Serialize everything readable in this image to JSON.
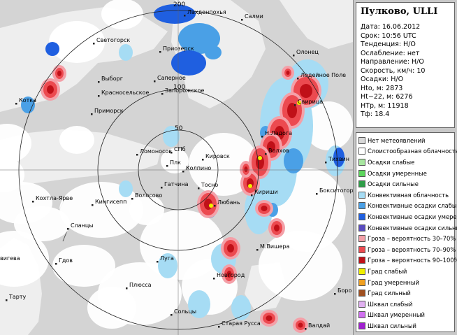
{
  "station": {
    "title": "Пулково, ULLI",
    "rows": [
      "Дата: 16.06.2012",
      "Срок: 10:56 UTC",
      "Тенденция: Н/О",
      "Ослабление: нет",
      "Направление: Н/О",
      "Скорость, км/ч: 10",
      "Осадки: Н/О",
      "Hto, м: 2873",
      "Ht−22, м: 6276",
      "HTp, м: 11918",
      "Тф: 18.4"
    ]
  },
  "legend": [
    {
      "label": "Нет метеоявлений",
      "color": "#d8d8d8"
    },
    {
      "label": "Слоистообразная облачность",
      "color": "#ffffff"
    },
    {
      "label": "Осадки слабые",
      "color": "#a8e6a0"
    },
    {
      "label": "Осадки умеренные",
      "color": "#5cd65c"
    },
    {
      "label": "Осадки сильные",
      "color": "#2e9e48"
    },
    {
      "label": "Конвективная облачность",
      "color": "#a6dcf4"
    },
    {
      "label": "Конвективные осадки слабые",
      "color": "#4aa0e6"
    },
    {
      "label": "Конвективные осадки умерен.",
      "color": "#1f5fe0"
    },
    {
      "label": "Конвективные осадки сильные",
      "color": "#5a4cc0"
    },
    {
      "label": "Гроза – вероятность 30–70%",
      "color": "#f4a0a8"
    },
    {
      "label": "Гроза – вероятность 70–90%",
      "color": "#ec4a50"
    },
    {
      "label": "Гроза – вероятность 90–100%",
      "color": "#c01018"
    },
    {
      "label": "Град слабый",
      "color": "#f0f000"
    },
    {
      "label": "Град умеренный",
      "color": "#f0a020"
    },
    {
      "label": "Град сильный",
      "color": "#a05020"
    },
    {
      "label": "Шквал слабый",
      "color": "#e0b0f0"
    },
    {
      "label": "Шквал умеренный",
      "color": "#d070f0"
    },
    {
      "label": "Шквал сильный",
      "color": "#a020d0"
    }
  ],
  "map": {
    "colors": {
      "land": "#d4d4d4",
      "water": "#eeeeee",
      "ring": "#222222",
      "stratus": "#ffffff",
      "conv_cloud": "#a6dcf4",
      "conv_light": "#4aa0e6",
      "conv_mod": "#1f5fe0",
      "storm_low": "#f4a0a8",
      "storm_mid": "#ec4a50",
      "storm_high": "#c01018",
      "hail": "#f0f000"
    },
    "ring_labels": [
      "200",
      "100",
      "50"
    ],
    "cities": [
      "Лахденпохья",
      "Салми",
      "Светогорск",
      "Приозерск",
      "Олонец",
      "Выборг",
      "Саперное",
      "Лодейное Поле",
      "Котка",
      "Красносельское",
      "Запорожское",
      "Приморск",
      "Свирица",
      "Н.Ладога",
      "Ломоносов",
      "СПб",
      "Волхов",
      "Плк",
      "Кировск",
      "Колпино",
      "Тихвин",
      "Гатчина",
      "Тосно",
      "Кириши",
      "Бокситогорск",
      "Кохтла-Ярве",
      "Кингисепп",
      "Волосово",
      "Любань",
      "Сланцы",
      "М.Вишера",
      "Гдов",
      "Луга",
      "Новгород",
      "Плюсса",
      "Боро",
      "Тарту",
      "Сольцы",
      "Старая Русса",
      "Валдай",
      "вигева"
    ]
  }
}
